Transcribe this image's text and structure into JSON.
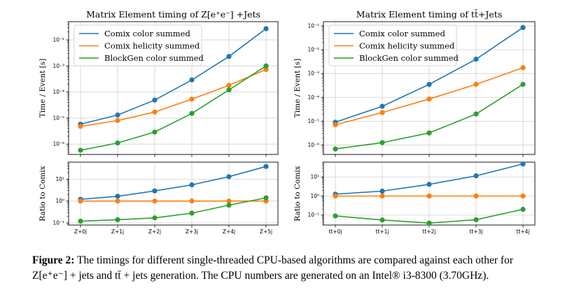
{
  "caption": {
    "label": "Figure 2:",
    "text": "The timings for different single-threaded CPU-based algorithms are compared against each other for Z[e⁺e⁻] + jets and tt̄ + jets generation. The CPU numbers are generated on an Intel® i3-8300 (3.70GHz)."
  },
  "colors": {
    "comix_color": "#1f77b4",
    "comix_helicity": "#ff7f0e",
    "blockgen": "#2ca02c"
  },
  "chart_data": [
    {
      "type": "line",
      "panel": "left-top",
      "title": "Matrix Element timing of Z[e⁺e⁻] +Jets",
      "ylabel": "Time / Event [s]",
      "yscale": "log",
      "ylim": [
        4e-07,
        0.05
      ],
      "yticks": [
        "10⁻⁶",
        "10⁻⁵",
        "10⁻⁴",
        "10⁻³",
        "10⁻²"
      ],
      "categories": [
        "Z+0j",
        "Z+1j",
        "Z+2j",
        "Z+3j",
        "Z+4j",
        "Z+5j"
      ],
      "legend": "upper-left",
      "grid": true,
      "series": [
        {
          "name": "Comix color summed",
          "values": [
            5.8e-06,
            1.3e-05,
            4.9e-05,
            0.00029,
            0.0023,
            0.027
          ]
        },
        {
          "name": "Comix helicity summed",
          "values": [
            4.8e-06,
            8e-06,
            1.7e-05,
            5.3e-05,
            0.00018,
            0.00073
          ]
        },
        {
          "name": "BlockGen color summed",
          "values": [
            5.8e-07,
            1.1e-06,
            2.9e-06,
            1.5e-05,
            0.00012,
            0.001
          ]
        }
      ]
    },
    {
      "type": "line",
      "panel": "left-bottom",
      "ylabel": "Ratio to Comix",
      "yscale": "log",
      "ylim": [
        0.08,
        60
      ],
      "yticks": [
        "10⁻¹",
        "10⁰",
        "10¹"
      ],
      "categories": [
        "Z+0j",
        "Z+1j",
        "Z+2j",
        "Z+3j",
        "Z+4j",
        "Z+5j"
      ],
      "grid": true,
      "series": [
        {
          "values": [
            1.2,
            1.65,
            2.9,
            5.5,
            13,
            38
          ]
        },
        {
          "values": [
            1,
            1,
            1,
            1,
            1,
            1
          ]
        },
        {
          "values": [
            0.12,
            0.14,
            0.17,
            0.28,
            0.65,
            1.4
          ]
        }
      ]
    },
    {
      "type": "line",
      "panel": "right-top",
      "title": "Matrix Element timing of tt̄+Jets",
      "ylabel": "Time / Event [s]",
      "yscale": "log",
      "ylim": [
        4e-07,
        0.15
      ],
      "yticks": [
        "10⁻⁶",
        "10⁻⁵",
        "10⁻⁴",
        "10⁻³",
        "10⁻²",
        "10⁻¹"
      ],
      "categories": [
        "tt+0j",
        "tt+1j",
        "tt+2j",
        "tt+3j",
        "tt+4j"
      ],
      "legend": "upper-left",
      "grid": true,
      "series": [
        {
          "name": "Comix color summed",
          "values": [
            9e-06,
            4.2e-05,
            0.00035,
            0.004,
            0.085
          ]
        },
        {
          "name": "Comix helicity summed",
          "values": [
            7e-06,
            2.3e-05,
            8.5e-05,
            0.00035,
            0.00175
          ]
        },
        {
          "name": "BlockGen color summed",
          "values": [
            6.8e-07,
            1.25e-06,
            3.2e-06,
            2e-05,
            0.00035
          ]
        }
      ]
    },
    {
      "type": "line",
      "panel": "right-bottom",
      "ylabel": "Ratio to Comix",
      "yscale": "log",
      "ylim": [
        0.03,
        60
      ],
      "yticks": [
        "10⁻¹",
        "10⁰",
        "10¹"
      ],
      "categories": [
        "tt+0j",
        "tt+1j",
        "tt+2j",
        "tt+3j",
        "tt+4j"
      ],
      "grid": true,
      "series": [
        {
          "values": [
            1.25,
            1.8,
            4.1,
            11.5,
            48
          ]
        },
        {
          "values": [
            1,
            1,
            1,
            1,
            1
          ]
        },
        {
          "values": [
            0.09,
            0.055,
            0.038,
            0.057,
            0.2
          ]
        }
      ]
    }
  ]
}
